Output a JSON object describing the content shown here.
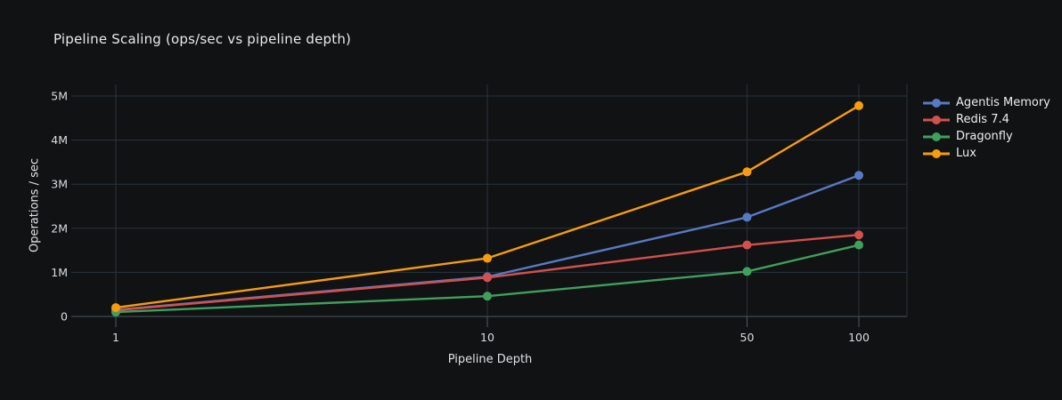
{
  "colors": {
    "background": "#111213",
    "grid": "#28343f",
    "axis": "#4d5a66",
    "text": "#e8eaec",
    "tick_text": "#d9dde1"
  },
  "chart_data": {
    "type": "line",
    "title": "Pipeline Scaling (ops/sec vs pipeline depth)",
    "xlabel": "Pipeline Depth",
    "ylabel": "Operations / sec",
    "x_scale": "log",
    "x": [
      1,
      10,
      50,
      100
    ],
    "x_tick_labels": [
      "1",
      "10",
      "50",
      "100"
    ],
    "y_ticks": [
      0,
      1000000,
      2000000,
      3000000,
      4000000,
      5000000
    ],
    "y_tick_labels": [
      "0",
      "1M",
      "2M",
      "3M",
      "4M",
      "5M"
    ],
    "ylim": [
      0,
      5000000
    ],
    "grid": true,
    "legend_position": "right",
    "series": [
      {
        "name": "Agentis Memory",
        "color": "#5879c4",
        "values": [
          150000,
          900000,
          2250000,
          3200000
        ]
      },
      {
        "name": "Redis 7.4",
        "color": "#d2504e",
        "values": [
          140000,
          880000,
          1620000,
          1850000
        ]
      },
      {
        "name": "Dragonfly",
        "color": "#3fa05e",
        "values": [
          100000,
          460000,
          1020000,
          1620000
        ]
      },
      {
        "name": "Lux",
        "color": "#f89c0d",
        "values": [
          200000,
          1320000,
          3280000,
          4780000
        ]
      }
    ]
  }
}
